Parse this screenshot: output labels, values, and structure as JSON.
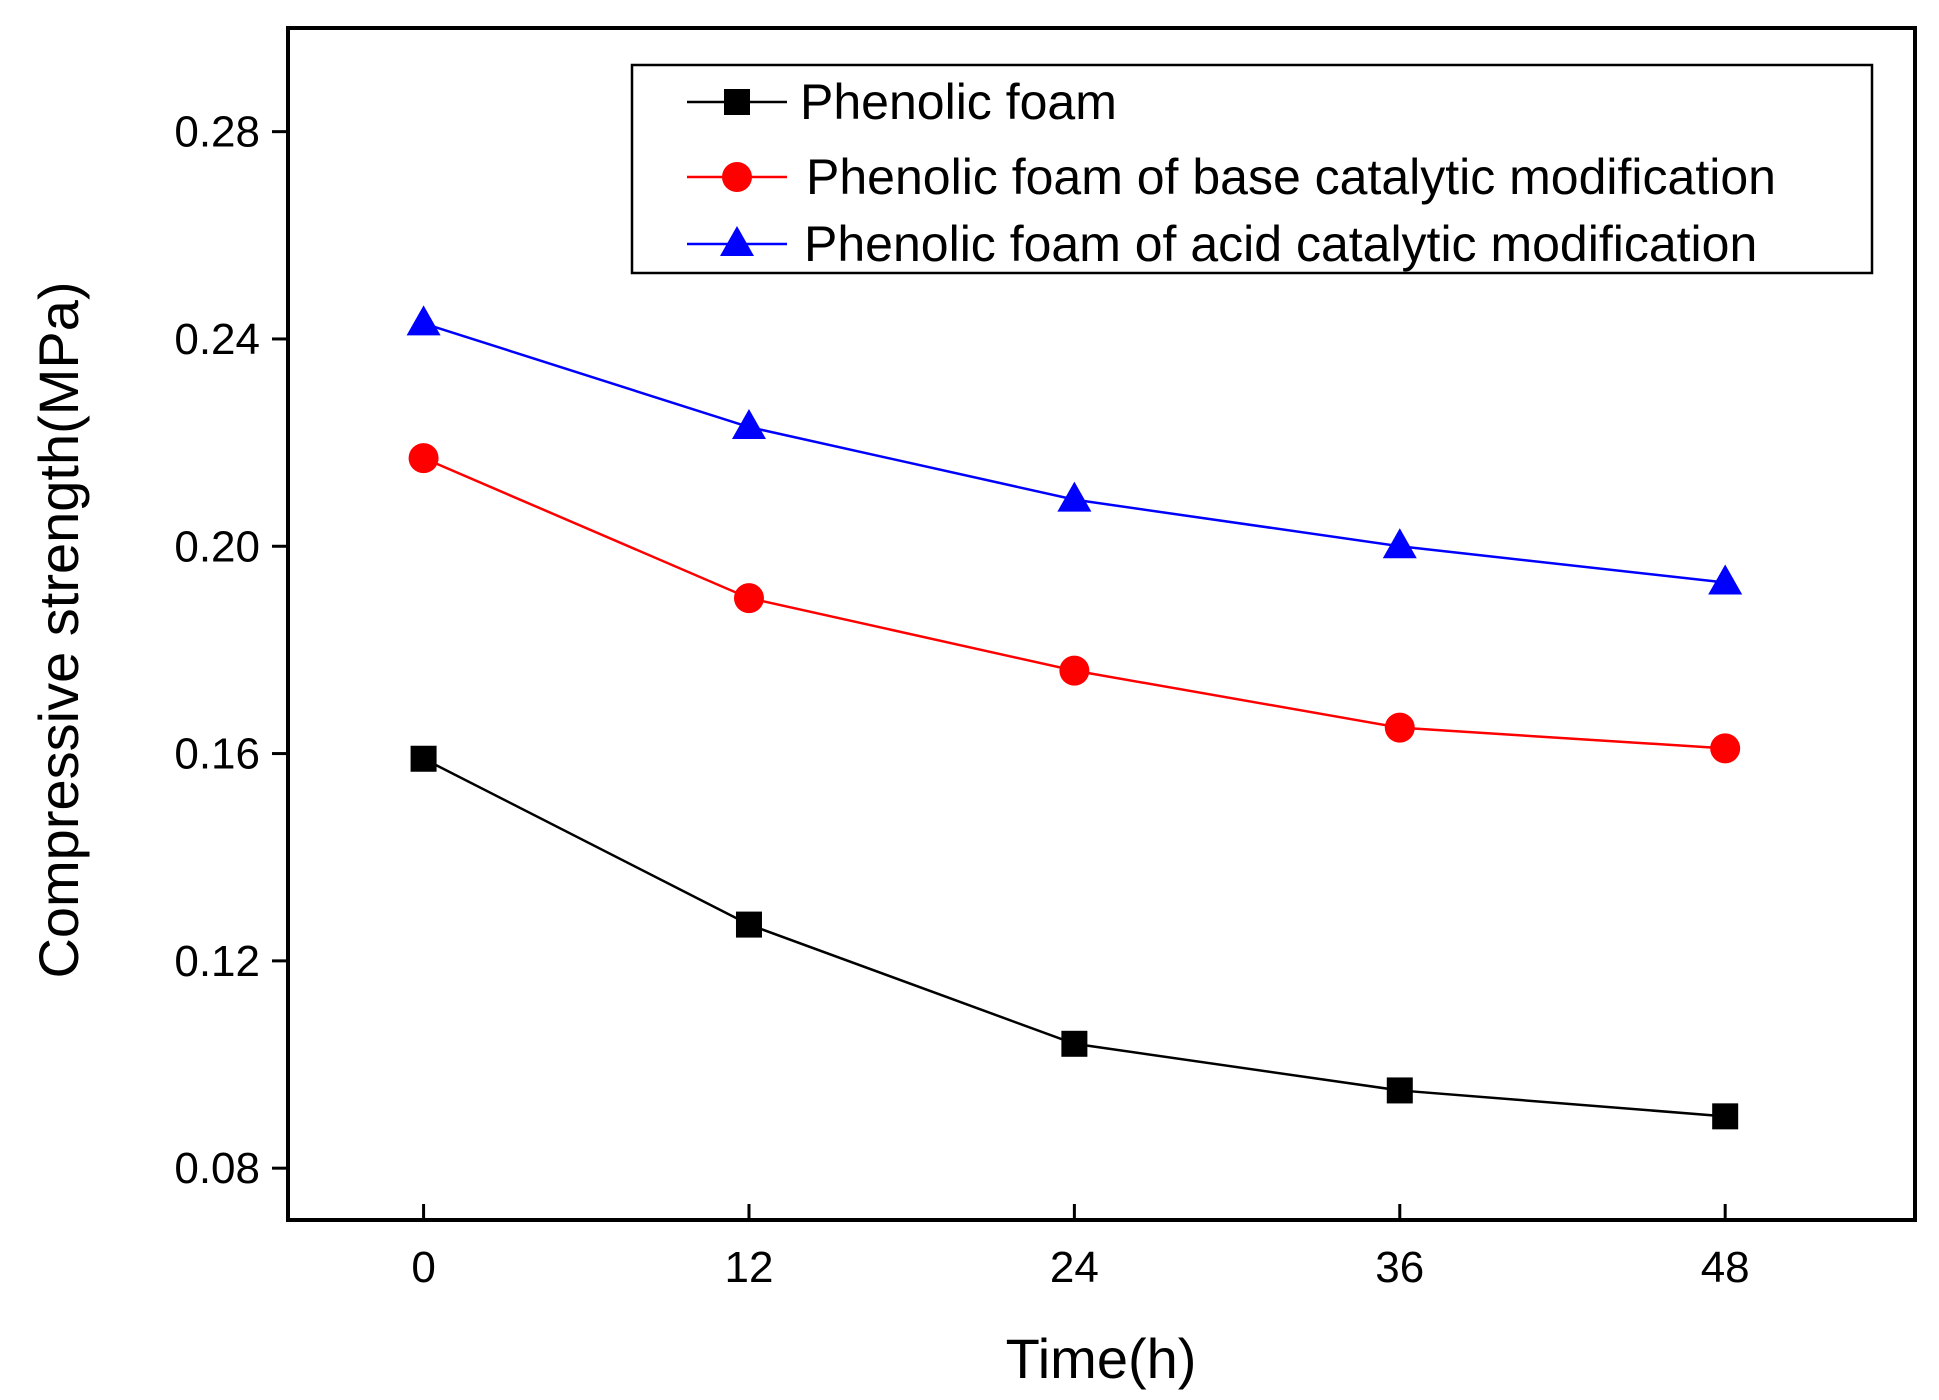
{
  "chart_data": {
    "type": "line",
    "title": "",
    "xlabel": "Time(h)",
    "ylabel": "Compressive strength(MPa)",
    "x": [
      0,
      12,
      24,
      36,
      48
    ],
    "xlim": [
      -5,
      55
    ],
    "ylim": [
      0.07,
      0.3
    ],
    "xticks": [
      0,
      12,
      24,
      36,
      48
    ],
    "xtick_labels": [
      "0",
      "12",
      "24",
      "36",
      "48"
    ],
    "yticks": [
      0.08,
      0.12,
      0.16,
      0.2,
      0.24,
      0.28
    ],
    "ytick_labels": [
      "0.08",
      "0.12",
      "0.16",
      "0.20",
      "0.24",
      "0.28"
    ],
    "grid": false,
    "legend_position": "top-right",
    "series": [
      {
        "name": "Phenolic foam",
        "color": "#000000",
        "marker": "square",
        "values": [
          0.159,
          0.127,
          0.104,
          0.095,
          0.09
        ]
      },
      {
        "name": "Phenolic foam of base catalytic modification",
        "color": "#ff0000",
        "marker": "circle",
        "values": [
          0.217,
          0.19,
          0.176,
          0.165,
          0.161
        ]
      },
      {
        "name": "Phenolic foam of acid catalytic modification",
        "color": "#0000ff",
        "marker": "triangle",
        "values": [
          0.243,
          0.223,
          0.209,
          0.2,
          0.193
        ]
      }
    ]
  }
}
